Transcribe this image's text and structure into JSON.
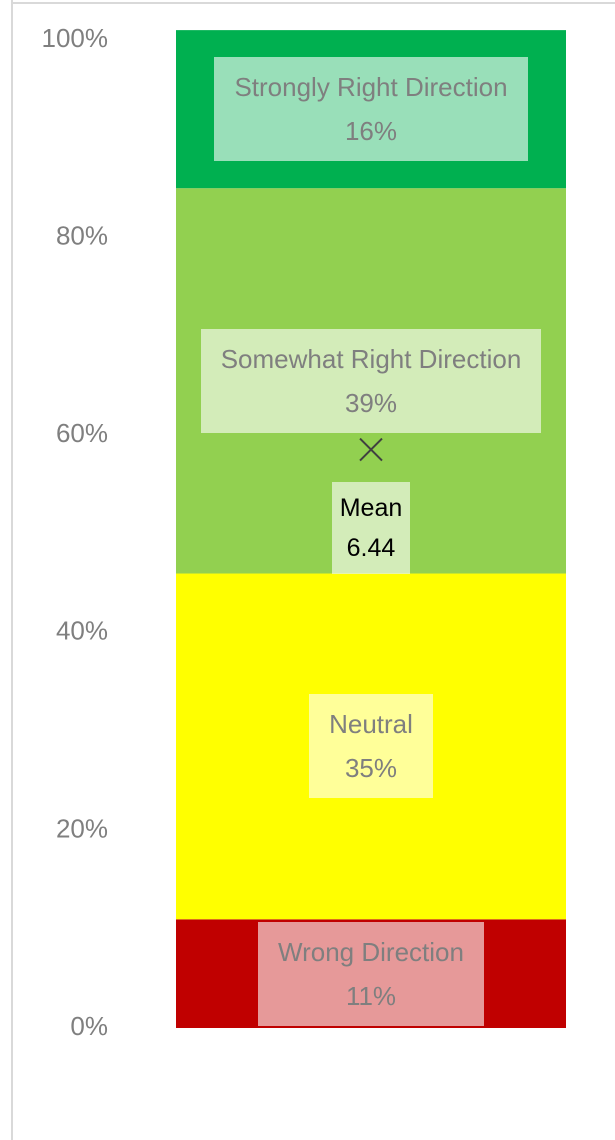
{
  "chart_data": {
    "type": "stacked_bar",
    "series": [
      {
        "name": "Wrong Direction",
        "color": "#c00000",
        "values": [
          11
        ],
        "value_labels": [
          "11%"
        ]
      },
      {
        "name": "Neutral",
        "color": "#ffff00",
        "values": [
          35
        ],
        "value_labels": [
          "35%"
        ]
      },
      {
        "name": "Somewhat Right Direction",
        "color": "#92d050",
        "values": [
          39
        ],
        "value_labels": [
          "39%"
        ]
      },
      {
        "name": "Strongly Right Direction",
        "color": "#00b050",
        "values": [
          16
        ],
        "value_labels": [
          "16%"
        ]
      }
    ],
    "ylim": [
      0,
      100
    ],
    "yticks": [
      {
        "value": 0,
        "label": "0%"
      },
      {
        "value": 20,
        "label": "20%"
      },
      {
        "value": 40,
        "label": "40%"
      },
      {
        "value": 60,
        "label": "60%"
      },
      {
        "value": 80,
        "label": "80%"
      },
      {
        "value": 100,
        "label": "100%"
      }
    ],
    "y2lim": [
      0,
      11
    ],
    "mean": {
      "label": "Mean",
      "value": 6.44,
      "axis": "y2"
    }
  }
}
